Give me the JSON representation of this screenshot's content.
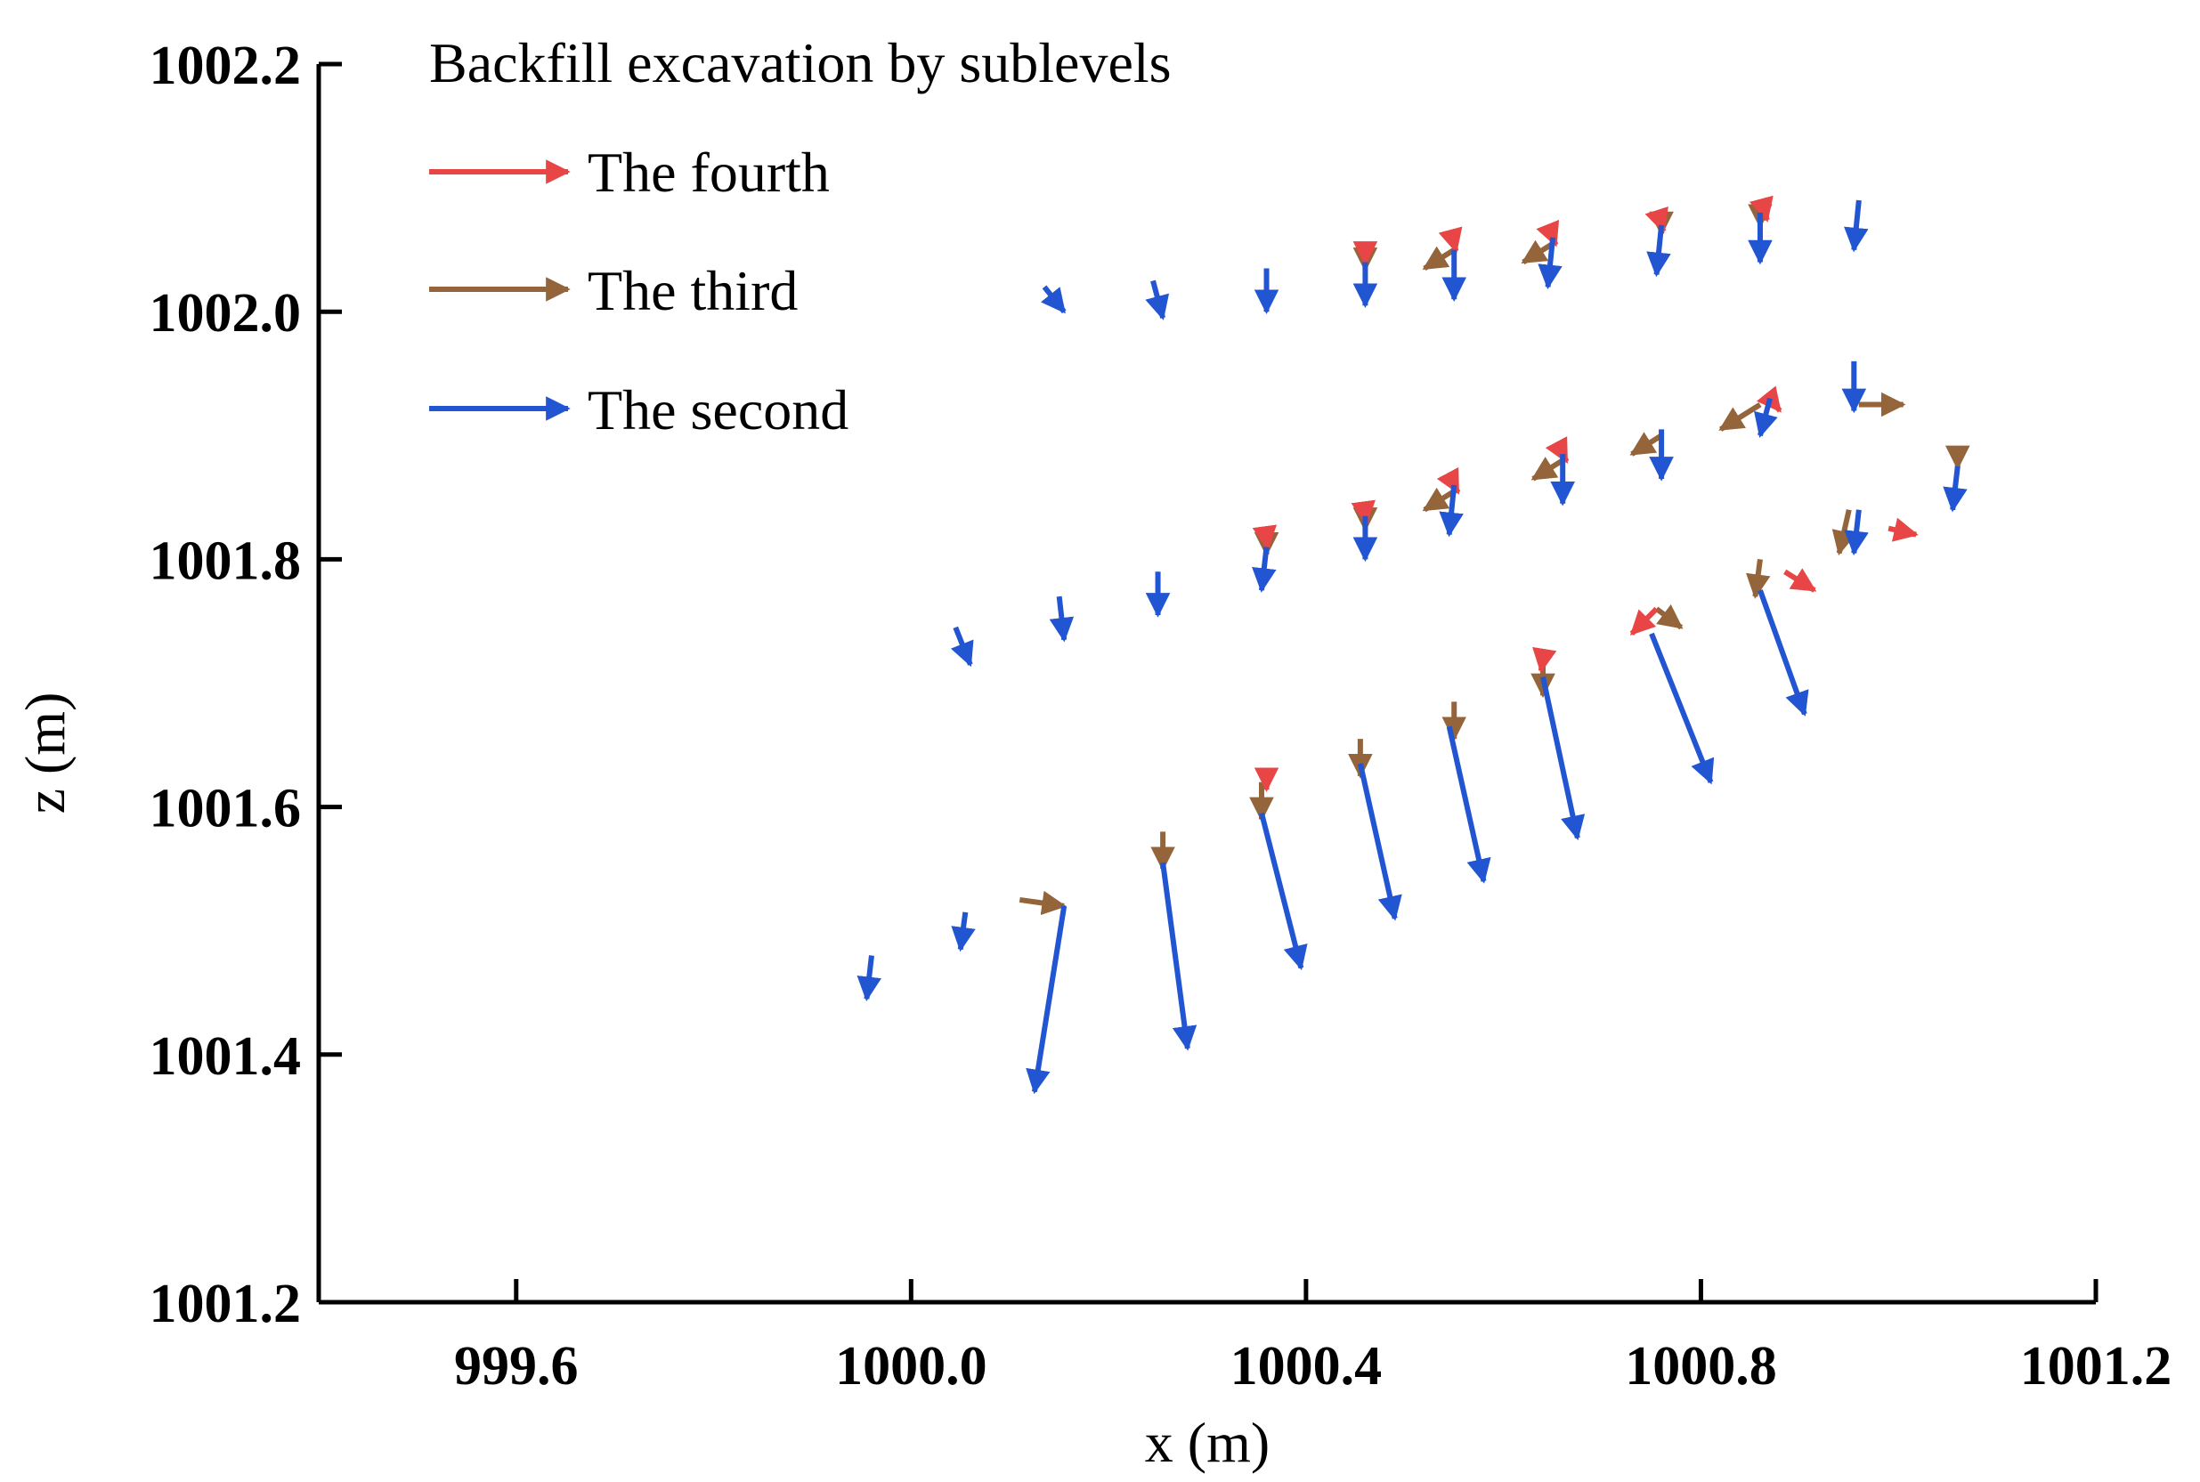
{
  "chart_data": {
    "type": "vector",
    "title": "",
    "xlabel": "x (m)",
    "ylabel": "z (m)",
    "xlim": [
      999.4,
      1001.2
    ],
    "ylim": [
      1001.2,
      1002.2
    ],
    "xticks": [
      "999.6",
      "1000.0",
      "1000.4",
      "1000.8",
      "1001.2"
    ],
    "yticks": [
      "1001.2",
      "1001.4",
      "1001.6",
      "1001.8",
      "1002.0",
      "1002.2"
    ],
    "legend": {
      "title": "Backfill excavation by sublevels",
      "position": "top-left",
      "entries": [
        {
          "name": "The fourth",
          "color": "#e84646"
        },
        {
          "name": "The third",
          "color": "#94643a"
        },
        {
          "name": "The second",
          "color": "#2255d1"
        }
      ]
    },
    "series": [
      {
        "name": "The fourth",
        "color": "#e84646",
        "vectors": [
          {
            "x": 1000.46,
            "z": 1002.045,
            "dx": 0.0,
            "dz": -0.006
          },
          {
            "x": 1000.55,
            "z": 1002.055,
            "dx": 0.002,
            "dz": -0.006
          },
          {
            "x": 1000.65,
            "z": 1002.06,
            "dx": 0.003,
            "dz": -0.006
          },
          {
            "x": 1000.76,
            "z": 1002.07,
            "dx": 0.002,
            "dz": -0.005
          },
          {
            "x": 1000.865,
            "z": 1002.08,
            "dx": 0.002,
            "dz": -0.006
          },
          {
            "x": 1000.36,
            "z": 1001.815,
            "dx": 0.001,
            "dz": -0.006
          },
          {
            "x": 1000.46,
            "z": 1001.835,
            "dx": 0.001,
            "dz": -0.006
          },
          {
            "x": 1000.55,
            "z": 1001.86,
            "dx": 0.004,
            "dz": -0.006
          },
          {
            "x": 1000.66,
            "z": 1001.885,
            "dx": 0.004,
            "dz": -0.006
          },
          {
            "x": 1000.87,
            "z": 1001.93,
            "dx": 0.01,
            "dz": -0.01
          },
          {
            "x": 1000.99,
            "z": 1001.825,
            "dx": 0.028,
            "dz": -0.005
          },
          {
            "x": 1000.885,
            "z": 1001.79,
            "dx": 0.03,
            "dz": -0.015
          },
          {
            "x": 1000.755,
            "z": 1001.76,
            "dx": -0.025,
            "dz": -0.02
          },
          {
            "x": 1000.64,
            "z": 1001.72,
            "dx": -0.002,
            "dz": -0.01
          },
          {
            "x": 1000.36,
            "z": 1001.62,
            "dx": 0.0,
            "dz": -0.006
          }
        ]
      },
      {
        "name": "The third",
        "color": "#94643a",
        "vectors": [
          {
            "x": 1000.46,
            "z": 1002.04,
            "dx": 0.0,
            "dz": -0.006
          },
          {
            "x": 1000.55,
            "z": 1002.05,
            "dx": -0.03,
            "dz": -0.015
          },
          {
            "x": 1000.65,
            "z": 1002.055,
            "dx": -0.03,
            "dz": -0.015
          },
          {
            "x": 1000.76,
            "z": 1002.068,
            "dx": 0.0,
            "dz": -0.005
          },
          {
            "x": 1000.86,
            "z": 1002.075,
            "dx": 0.0,
            "dz": -0.006
          },
          {
            "x": 1000.36,
            "z": 1001.81,
            "dx": 0.0,
            "dz": -0.006
          },
          {
            "x": 1000.46,
            "z": 1001.83,
            "dx": 0.0,
            "dz": -0.006
          },
          {
            "x": 1000.55,
            "z": 1001.855,
            "dx": -0.03,
            "dz": -0.015
          },
          {
            "x": 1000.66,
            "z": 1001.88,
            "dx": -0.03,
            "dz": -0.015
          },
          {
            "x": 1000.76,
            "z": 1001.9,
            "dx": -0.03,
            "dz": -0.015
          },
          {
            "x": 1000.86,
            "z": 1001.925,
            "dx": -0.04,
            "dz": -0.02
          },
          {
            "x": 1000.96,
            "z": 1001.925,
            "dx": 0.045,
            "dz": 0.0
          },
          {
            "x": 1001.06,
            "z": 1001.88,
            "dx": 0.0,
            "dz": -0.006
          },
          {
            "x": 1000.95,
            "z": 1001.84,
            "dx": -0.01,
            "dz": -0.035
          },
          {
            "x": 1000.86,
            "z": 1001.8,
            "dx": -0.005,
            "dz": -0.03
          },
          {
            "x": 1000.755,
            "z": 1001.76,
            "dx": 0.025,
            "dz": -0.015
          },
          {
            "x": 1000.64,
            "z": 1001.72,
            "dx": 0.0,
            "dz": -0.03
          },
          {
            "x": 1000.55,
            "z": 1001.685,
            "dx": 0.0,
            "dz": -0.03
          },
          {
            "x": 1000.455,
            "z": 1001.655,
            "dx": 0.0,
            "dz": -0.03
          },
          {
            "x": 1000.355,
            "z": 1001.62,
            "dx": 0.0,
            "dz": -0.03
          },
          {
            "x": 1000.255,
            "z": 1001.58,
            "dx": 0.0,
            "dz": -0.03
          },
          {
            "x": 1000.11,
            "z": 1001.525,
            "dx": 0.045,
            "dz": -0.005
          }
        ]
      },
      {
        "name": "The second",
        "color": "#2255d1",
        "vectors": [
          {
            "x": 1000.135,
            "z": 1002.02,
            "dx": 0.02,
            "dz": -0.02
          },
          {
            "x": 1000.245,
            "z": 1002.025,
            "dx": 0.01,
            "dz": -0.03
          },
          {
            "x": 1000.36,
            "z": 1002.035,
            "dx": 0.0,
            "dz": -0.035
          },
          {
            "x": 1000.46,
            "z": 1002.04,
            "dx": 0.0,
            "dz": -0.035
          },
          {
            "x": 1000.55,
            "z": 1002.05,
            "dx": 0.0,
            "dz": -0.04
          },
          {
            "x": 1000.65,
            "z": 1002.06,
            "dx": -0.005,
            "dz": -0.04
          },
          {
            "x": 1000.76,
            "z": 1002.07,
            "dx": -0.005,
            "dz": -0.04
          },
          {
            "x": 1000.86,
            "z": 1002.08,
            "dx": 0.0,
            "dz": -0.04
          },
          {
            "x": 1000.96,
            "z": 1002.09,
            "dx": -0.005,
            "dz": -0.04
          },
          {
            "x": 1000.045,
            "z": 1001.745,
            "dx": 0.015,
            "dz": -0.03
          },
          {
            "x": 1000.15,
            "z": 1001.77,
            "dx": 0.005,
            "dz": -0.035
          },
          {
            "x": 1000.25,
            "z": 1001.79,
            "dx": 0.0,
            "dz": -0.035
          },
          {
            "x": 1000.36,
            "z": 1001.81,
            "dx": -0.005,
            "dz": -0.035
          },
          {
            "x": 1000.46,
            "z": 1001.835,
            "dx": 0.0,
            "dz": -0.035
          },
          {
            "x": 1000.55,
            "z": 1001.86,
            "dx": -0.005,
            "dz": -0.04
          },
          {
            "x": 1000.66,
            "z": 1001.885,
            "dx": 0.0,
            "dz": -0.04
          },
          {
            "x": 1000.76,
            "z": 1001.905,
            "dx": 0.0,
            "dz": -0.04
          },
          {
            "x": 1000.87,
            "z": 1001.93,
            "dx": -0.01,
            "dz": -0.03
          },
          {
            "x": 1000.955,
            "z": 1001.96,
            "dx": 0.0,
            "dz": -0.04
          },
          {
            "x": 1001.06,
            "z": 1001.875,
            "dx": -0.005,
            "dz": -0.035
          },
          {
            "x": 1000.96,
            "z": 1001.84,
            "dx": -0.005,
            "dz": -0.035
          },
          {
            "x": 999.96,
            "z": 1001.48,
            "dx": -0.005,
            "dz": -0.035
          },
          {
            "x": 1000.055,
            "z": 1001.515,
            "dx": -0.005,
            "dz": -0.03
          },
          {
            "x": 1000.155,
            "z": 1001.52,
            "dx": -0.03,
            "dz": -0.15
          },
          {
            "x": 1000.255,
            "z": 1001.555,
            "dx": 0.025,
            "dz": -0.15
          },
          {
            "x": 1000.355,
            "z": 1001.595,
            "dx": 0.04,
            "dz": -0.125
          },
          {
            "x": 1000.455,
            "z": 1001.635,
            "dx": 0.035,
            "dz": -0.125
          },
          {
            "x": 1000.545,
            "z": 1001.665,
            "dx": 0.035,
            "dz": -0.125
          },
          {
            "x": 1000.64,
            "z": 1001.705,
            "dx": 0.035,
            "dz": -0.13
          },
          {
            "x": 1000.75,
            "z": 1001.74,
            "dx": 0.06,
            "dz": -0.12
          },
          {
            "x": 1000.86,
            "z": 1001.775,
            "dx": 0.045,
            "dz": -0.1
          }
        ]
      }
    ]
  }
}
